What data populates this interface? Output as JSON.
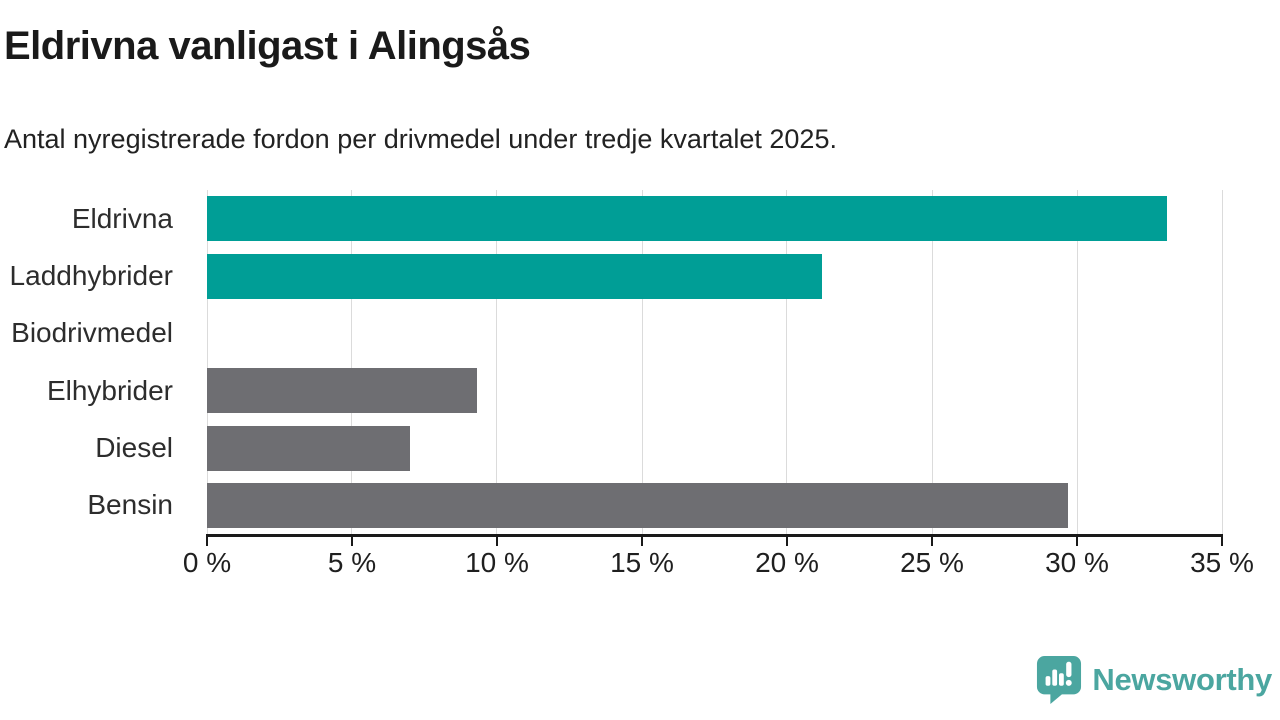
{
  "chart_data": {
    "type": "bar",
    "orientation": "horizontal",
    "title": "Eldrivna vanligast i Alingsås",
    "subtitle": "Antal nyregistrerade fordon per drivmedel under tredje kvartalet 2025.",
    "categories": [
      "Eldrivna",
      "Laddhybrider",
      "Biodrivmedel",
      "Elhybrider",
      "Diesel",
      "Bensin"
    ],
    "values": [
      33.1,
      21.2,
      0,
      9.3,
      7.0,
      29.7
    ],
    "bar_colors": [
      "#009E96",
      "#009E96",
      "#6E6E72",
      "#6E6E72",
      "#6E6E72",
      "#6E6E72"
    ],
    "unit": "%",
    "xlabel": "",
    "ylabel": "",
    "xlim": [
      0,
      35
    ],
    "x_tick_values": [
      0,
      5,
      10,
      15,
      20,
      25,
      30,
      35
    ],
    "x_tick_labels": [
      "0 %",
      "5 %",
      "10 %",
      "15 %",
      "20 %",
      "25 %",
      "30 %",
      "35 %"
    ],
    "grid": true,
    "legend": false
  },
  "colors": {
    "accent_teal": "#009E96",
    "bar_gray": "#6E6E72",
    "gridline": "#dbdbdb",
    "axis": "#1a1a1a",
    "brand_teal": "#4BA6A0"
  },
  "branding": {
    "name": "Newsworthy"
  }
}
